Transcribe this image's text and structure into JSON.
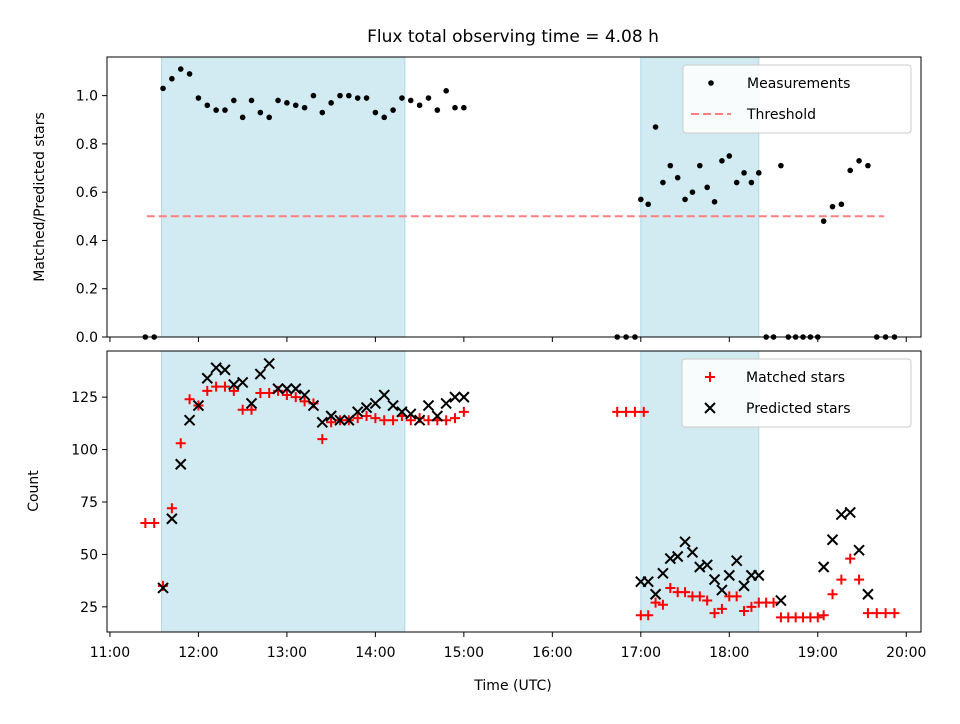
{
  "chart_data": {
    "type": "scatter",
    "title": "Flux total observing time = 4.08 h",
    "xlabel": "Time (UTC)",
    "x_unit": "UTC time of day",
    "xlim": [
      "10:58",
      "20:10"
    ],
    "x_ticks": [
      "11:00",
      "12:00",
      "13:00",
      "14:00",
      "15:00",
      "16:00",
      "17:00",
      "18:00",
      "19:00",
      "20:00"
    ],
    "shaded_intervals": [
      [
        "11:35",
        "14:20"
      ],
      [
        "17:00",
        "18:20"
      ]
    ],
    "shade_color": "#add8e6",
    "panels": [
      {
        "ylabel": "Matched/Predicted stars",
        "ylim": [
          0,
          1.16
        ],
        "y_ticks": [
          "0.0",
          "0.2",
          "0.4",
          "0.6",
          "0.8",
          "1.0"
        ],
        "legend_position": "top-right",
        "series": [
          {
            "name": "Measurements",
            "marker": "dot",
            "color": "#000000",
            "points": [
              [
                "11:24",
                0.0
              ],
              [
                "11:30",
                0.0
              ],
              [
                "11:36",
                1.03
              ],
              [
                "11:42",
                1.07
              ],
              [
                "11:48",
                1.11
              ],
              [
                "11:54",
                1.09
              ],
              [
                "12:00",
                0.99
              ],
              [
                "12:06",
                0.96
              ],
              [
                "12:12",
                0.94
              ],
              [
                "12:18",
                0.94
              ],
              [
                "12:24",
                0.98
              ],
              [
                "12:30",
                0.91
              ],
              [
                "12:36",
                0.98
              ],
              [
                "12:42",
                0.93
              ],
              [
                "12:48",
                0.91
              ],
              [
                "12:54",
                0.98
              ],
              [
                "13:00",
                0.97
              ],
              [
                "13:06",
                0.96
              ],
              [
                "13:12",
                0.95
              ],
              [
                "13:18",
                1.0
              ],
              [
                "13:24",
                0.93
              ],
              [
                "13:30",
                0.97
              ],
              [
                "13:36",
                1.0
              ],
              [
                "13:42",
                1.0
              ],
              [
                "13:48",
                0.99
              ],
              [
                "13:54",
                0.99
              ],
              [
                "14:00",
                0.93
              ],
              [
                "14:06",
                0.91
              ],
              [
                "14:12",
                0.94
              ],
              [
                "14:18",
                0.99
              ],
              [
                "14:24",
                0.98
              ],
              [
                "14:30",
                0.96
              ],
              [
                "14:36",
                0.99
              ],
              [
                "14:42",
                0.94
              ],
              [
                "14:48",
                1.02
              ],
              [
                "14:54",
                0.95
              ],
              [
                "15:00",
                0.95
              ],
              [
                "16:44",
                0.0
              ],
              [
                "16:50",
                0.0
              ],
              [
                "16:56",
                0.0
              ],
              [
                "17:00",
                0.57
              ],
              [
                "17:05",
                0.55
              ],
              [
                "17:10",
                0.87
              ],
              [
                "17:15",
                0.64
              ],
              [
                "17:20",
                0.71
              ],
              [
                "17:25",
                0.66
              ],
              [
                "17:30",
                0.57
              ],
              [
                "17:35",
                0.6
              ],
              [
                "17:40",
                0.71
              ],
              [
                "17:45",
                0.62
              ],
              [
                "17:50",
                0.56
              ],
              [
                "17:55",
                0.73
              ],
              [
                "18:00",
                0.75
              ],
              [
                "18:05",
                0.64
              ],
              [
                "18:10",
                0.68
              ],
              [
                "18:15",
                0.64
              ],
              [
                "18:20",
                0.68
              ],
              [
                "18:25",
                0.0
              ],
              [
                "18:30",
                0.0
              ],
              [
                "18:35",
                0.71
              ],
              [
                "18:40",
                0.0
              ],
              [
                "18:45",
                0.0
              ],
              [
                "18:50",
                0.0
              ],
              [
                "18:55",
                0.0
              ],
              [
                "19:00",
                0.0
              ],
              [
                "19:04",
                0.48
              ],
              [
                "19:10",
                0.54
              ],
              [
                "19:16",
                0.55
              ],
              [
                "19:22",
                0.69
              ],
              [
                "19:28",
                0.73
              ],
              [
                "19:34",
                0.71
              ],
              [
                "19:40",
                0.0
              ],
              [
                "19:46",
                0.0
              ],
              [
                "19:52",
                0.0
              ]
            ]
          },
          {
            "name": "Threshold",
            "marker": "dashed-line",
            "color": "#ff7f7f",
            "points": [
              [
                "11:25",
                0.5
              ],
              [
                "19:45",
                0.5
              ]
            ]
          }
        ]
      },
      {
        "ylabel": "Count",
        "ylim": [
          13,
          147
        ],
        "y_ticks": [
          "25",
          "50",
          "75",
          "100",
          "125"
        ],
        "legend_position": "top-right",
        "series": [
          {
            "name": "Matched stars",
            "marker": "plus",
            "color": "#ff0000",
            "points": [
              [
                "11:24",
                65
              ],
              [
                "11:30",
                65
              ],
              [
                "11:36",
                35
              ],
              [
                "11:42",
                72
              ],
              [
                "11:48",
                103
              ],
              [
                "11:54",
                124
              ],
              [
                "12:00",
                121
              ],
              [
                "12:06",
                128
              ],
              [
                "12:12",
                130
              ],
              [
                "12:18",
                130
              ],
              [
                "12:24",
                128
              ],
              [
                "12:30",
                119
              ],
              [
                "12:36",
                119
              ],
              [
                "12:42",
                127
              ],
              [
                "12:48",
                127
              ],
              [
                "12:54",
                128
              ],
              [
                "13:00",
                126
              ],
              [
                "13:06",
                125
              ],
              [
                "13:12",
                123
              ],
              [
                "13:18",
                122
              ],
              [
                "13:24",
                105
              ],
              [
                "13:30",
                113
              ],
              [
                "13:36",
                114
              ],
              [
                "13:42",
                114
              ],
              [
                "13:48",
                115
              ],
              [
                "13:54",
                116
              ],
              [
                "14:00",
                115
              ],
              [
                "14:06",
                114
              ],
              [
                "14:12",
                114
              ],
              [
                "14:18",
                116
              ],
              [
                "14:24",
                114
              ],
              [
                "14:30",
                115
              ],
              [
                "14:36",
                114
              ],
              [
                "14:42",
                114
              ],
              [
                "14:48",
                114
              ],
              [
                "14:54",
                115
              ],
              [
                "15:00",
                118
              ],
              [
                "16:44",
                118
              ],
              [
                "16:50",
                118
              ],
              [
                "16:56",
                118
              ],
              [
                "17:02",
                118
              ],
              [
                "17:00",
                21
              ],
              [
                "17:05",
                21
              ],
              [
                "17:10",
                27
              ],
              [
                "17:15",
                26
              ],
              [
                "17:20",
                34
              ],
              [
                "17:25",
                32
              ],
              [
                "17:30",
                32
              ],
              [
                "17:35",
                30
              ],
              [
                "17:40",
                30
              ],
              [
                "17:45",
                28
              ],
              [
                "17:50",
                22
              ],
              [
                "17:55",
                24
              ],
              [
                "18:00",
                30
              ],
              [
                "18:05",
                30
              ],
              [
                "18:10",
                23
              ],
              [
                "18:15",
                25
              ],
              [
                "18:20",
                27
              ],
              [
                "18:25",
                27
              ],
              [
                "18:30",
                27
              ],
              [
                "18:35",
                20
              ],
              [
                "18:40",
                20
              ],
              [
                "18:45",
                20
              ],
              [
                "18:50",
                20
              ],
              [
                "18:55",
                20
              ],
              [
                "19:00",
                20
              ],
              [
                "19:04",
                21
              ],
              [
                "19:10",
                31
              ],
              [
                "19:16",
                38
              ],
              [
                "19:22",
                48
              ],
              [
                "19:28",
                38
              ],
              [
                "19:34",
                22
              ],
              [
                "19:40",
                22
              ],
              [
                "19:46",
                22
              ],
              [
                "19:52",
                22
              ]
            ]
          },
          {
            "name": "Predicted stars",
            "marker": "x",
            "color": "#000000",
            "points": [
              [
                "11:36",
                34
              ],
              [
                "11:42",
                67
              ],
              [
                "11:48",
                93
              ],
              [
                "11:54",
                114
              ],
              [
                "12:00",
                121
              ],
              [
                "12:06",
                134
              ],
              [
                "12:12",
                139
              ],
              [
                "12:18",
                138
              ],
              [
                "12:24",
                131
              ],
              [
                "12:30",
                132
              ],
              [
                "12:36",
                122
              ],
              [
                "12:42",
                136
              ],
              [
                "12:48",
                141
              ],
              [
                "12:54",
                129
              ],
              [
                "13:00",
                129
              ],
              [
                "13:06",
                129
              ],
              [
                "13:12",
                126
              ],
              [
                "13:18",
                121
              ],
              [
                "13:24",
                113
              ],
              [
                "13:30",
                116
              ],
              [
                "13:36",
                114
              ],
              [
                "13:42",
                114
              ],
              [
                "13:48",
                118
              ],
              [
                "13:54",
                120
              ],
              [
                "14:00",
                122
              ],
              [
                "14:06",
                126
              ],
              [
                "14:12",
                121
              ],
              [
                "14:18",
                118
              ],
              [
                "14:24",
                117
              ],
              [
                "14:30",
                114
              ],
              [
                "14:36",
                121
              ],
              [
                "14:42",
                116
              ],
              [
                "14:48",
                122
              ],
              [
                "14:54",
                125
              ],
              [
                "15:00",
                125
              ],
              [
                "17:00",
                37
              ],
              [
                "17:05",
                37
              ],
              [
                "17:10",
                31
              ],
              [
                "17:15",
                41
              ],
              [
                "17:20",
                48
              ],
              [
                "17:25",
                49
              ],
              [
                "17:30",
                56
              ],
              [
                "17:35",
                51
              ],
              [
                "17:40",
                44
              ],
              [
                "17:45",
                45
              ],
              [
                "17:50",
                38
              ],
              [
                "17:55",
                33
              ],
              [
                "18:00",
                40
              ],
              [
                "18:05",
                47
              ],
              [
                "18:10",
                35
              ],
              [
                "18:15",
                40
              ],
              [
                "18:20",
                40
              ],
              [
                "18:35",
                28
              ],
              [
                "19:04",
                44
              ],
              [
                "19:10",
                57
              ],
              [
                "19:16",
                69
              ],
              [
                "19:22",
                70
              ],
              [
                "19:28",
                52
              ],
              [
                "19:34",
                31
              ]
            ]
          }
        ]
      }
    ]
  }
}
